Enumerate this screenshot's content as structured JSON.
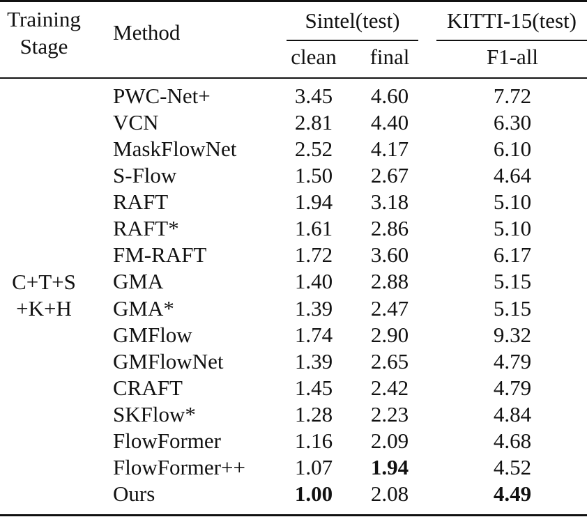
{
  "header": {
    "training_stage": [
      "Training",
      "Stage"
    ],
    "method": "Method",
    "sintel": "Sintel(test)",
    "kitti": "KITTI-15(test)",
    "clean": "clean",
    "final": "final",
    "f1_all": "F1-all"
  },
  "stage_label": [
    "C+T+S",
    "+K+H"
  ],
  "rows": [
    {
      "method": "PWC-Net+",
      "clean": "3.45",
      "final": "4.60",
      "f1": "7.72"
    },
    {
      "method": "VCN",
      "clean": "2.81",
      "final": "4.40",
      "f1": "6.30"
    },
    {
      "method": "MaskFlowNet",
      "clean": "2.52",
      "final": "4.17",
      "f1": "6.10"
    },
    {
      "method": "S-Flow",
      "clean": "1.50",
      "final": "2.67",
      "f1": "4.64"
    },
    {
      "method": "RAFT",
      "clean": "1.94",
      "final": "3.18",
      "f1": "5.10"
    },
    {
      "method": "RAFT*",
      "clean": "1.61",
      "final": "2.86",
      "f1": "5.10"
    },
    {
      "method": "FM-RAFT",
      "clean": "1.72",
      "final": "3.60",
      "f1": "6.17"
    },
    {
      "method": "GMA",
      "clean": "1.40",
      "final": "2.88",
      "f1": "5.15"
    },
    {
      "method": "GMA*",
      "clean": "1.39",
      "final": "2.47",
      "f1": "5.15"
    },
    {
      "method": "GMFlow",
      "clean": "1.74",
      "final": "2.90",
      "f1": "9.32"
    },
    {
      "method": "GMFlowNet",
      "clean": "1.39",
      "final": "2.65",
      "f1": "4.79"
    },
    {
      "method": "CRAFT",
      "clean": "1.45",
      "final": "2.42",
      "f1": "4.79"
    },
    {
      "method": "SKFlow*",
      "clean": "1.28",
      "final": "2.23",
      "f1": "4.84"
    },
    {
      "method": "FlowFormer",
      "clean": "1.16",
      "final": "2.09",
      "f1": "4.68"
    },
    {
      "method": "FlowFormer++",
      "clean": "1.07",
      "final": "1.94",
      "f1": "4.52"
    },
    {
      "method": "Ours",
      "clean": "1.00",
      "final": "2.08",
      "f1": "4.49"
    }
  ],
  "bold_cells": [
    {
      "row": 14,
      "col": "final"
    },
    {
      "row": 15,
      "col": "clean"
    },
    {
      "row": 15,
      "col": "f1"
    }
  ]
}
